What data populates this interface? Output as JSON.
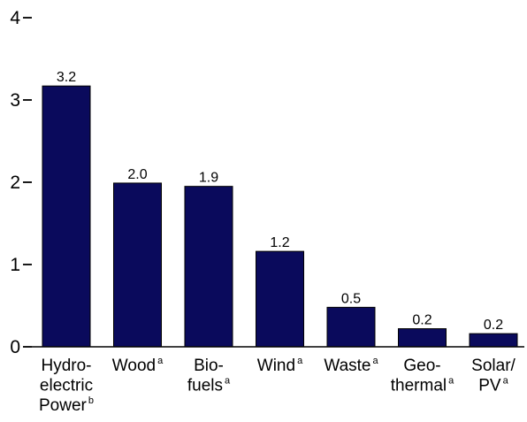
{
  "chart_data": {
    "type": "bar",
    "title": "",
    "xlabel": "",
    "ylabel": "",
    "ylim": [
      0,
      4
    ],
    "yticks": [
      0,
      1,
      2,
      3,
      4
    ],
    "grid": false,
    "bar_color": "#0a0a5c",
    "categories": [
      {
        "lines": [
          "Hydro-",
          "electric",
          "Power"
        ],
        "sup": "b"
      },
      {
        "lines": [
          "Wood"
        ],
        "sup": "a"
      },
      {
        "lines": [
          "Bio-",
          "fuels"
        ],
        "sup": "a"
      },
      {
        "lines": [
          "Wind"
        ],
        "sup": "a"
      },
      {
        "lines": [
          "Waste"
        ],
        "sup": "a"
      },
      {
        "lines": [
          "Geo-",
          "thermal"
        ],
        "sup": "a"
      },
      {
        "lines": [
          "Solar/",
          "PV"
        ],
        "sup": "a"
      }
    ],
    "values": [
      3.17,
      1.99,
      1.95,
      1.16,
      0.48,
      0.22,
      0.16
    ],
    "data_labels": [
      "3.2",
      "2.0",
      "1.9",
      "1.2",
      "0.5",
      "0.2",
      "0.2"
    ]
  }
}
